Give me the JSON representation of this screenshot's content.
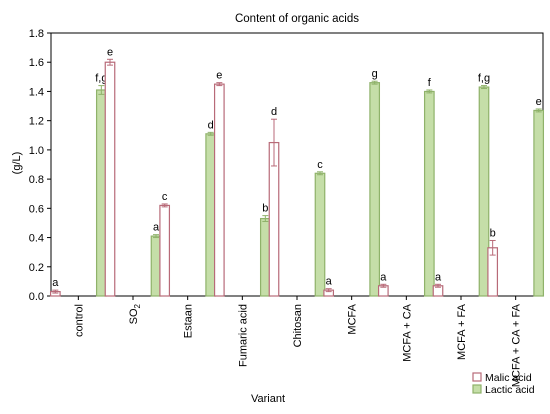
{
  "chart_data": {
    "type": "bar",
    "title": "Content of organic acids",
    "xlabel": "Variant",
    "ylabel": "(g/L)",
    "ylim": [
      0,
      1.8
    ],
    "yticks": [
      "0.0",
      "0.2",
      "0.4",
      "0.6",
      "0.8",
      "1.0",
      "1.2",
      "1.4",
      "1.6",
      "1.8"
    ],
    "grid": false,
    "legend_position": "bottom-right",
    "categories": [
      "control",
      "SO2",
      "Estaan",
      "Fumaric acid",
      "Chitosan",
      "MCFA",
      "MCFA + CA",
      "MCFA + FA",
      "MCFA + CA + FA"
    ],
    "series": [
      {
        "name": "Malic acid",
        "color": "#b86a78",
        "fill": "#ffffff",
        "values": [
          0.03,
          1.6,
          0.62,
          1.45,
          1.05,
          0.04,
          0.07,
          0.07,
          0.33
        ],
        "errors": [
          0.01,
          0.02,
          0.01,
          0.01,
          0.16,
          0.01,
          0.01,
          0.01,
          0.05
        ],
        "letters": [
          "a",
          "e",
          "c",
          "e",
          "d",
          "a",
          "a",
          "a",
          "b"
        ]
      },
      {
        "name": "Lactic acid",
        "color": "#8fb26a",
        "fill": "#c5dea8",
        "values": [
          1.41,
          0.41,
          1.11,
          0.53,
          0.84,
          1.46,
          1.4,
          1.43,
          1.27
        ],
        "errors": [
          0.03,
          0.01,
          0.01,
          0.02,
          0.01,
          0.01,
          0.01,
          0.01,
          0.01
        ],
        "letters": [
          "f,g",
          "a",
          "d",
          "b",
          "c",
          "g",
          "f",
          "f,g",
          "e"
        ]
      }
    ]
  }
}
